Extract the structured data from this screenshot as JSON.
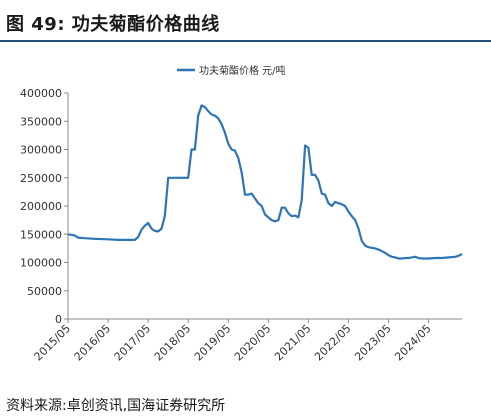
{
  "header": {
    "figure_label": "图 49:",
    "figure_title": "功夫菊酯价格曲线"
  },
  "footer": {
    "source": "资料来源:卓创资讯,国海证券研究所"
  },
  "colors": {
    "line": "#2e75b6",
    "title_rule": "#1f4e79",
    "axis": "#888888"
  },
  "chart_data": {
    "type": "line",
    "title": "",
    "xlabel": "",
    "ylabel": "",
    "ylim": [
      0,
      400000
    ],
    "yticks": [
      "0",
      "50000",
      "100000",
      "150000",
      "200000",
      "250000",
      "300000",
      "350000",
      "400000"
    ],
    "xticks": [
      "2015/05",
      "2016/05",
      "2017/05",
      "2018/05",
      "2019/05",
      "2020/05",
      "2021/05",
      "2022/05",
      "2023/05",
      "2024/05"
    ],
    "xrange": [
      "2015/05",
      "2025/03"
    ],
    "grid": false,
    "legend": "top-center",
    "series": [
      {
        "name": "功夫菊酯价格 元/吨",
        "x": [
          "2015/05",
          "2015/07",
          "2015/08",
          "2015/10",
          "2016/01",
          "2016/05",
          "2016/08",
          "2016/11",
          "2017/01",
          "2017/02",
          "2017/03",
          "2017/04",
          "2017/05",
          "2017/06",
          "2017/07",
          "2017/08",
          "2017/09",
          "2017/10",
          "2017/11",
          "2018/02",
          "2018/05",
          "2018/06",
          "2018/07",
          "2018/08",
          "2018/09",
          "2018/10",
          "2018/11",
          "2018/12",
          "2019/01",
          "2019/02",
          "2019/03",
          "2019/04",
          "2019/05",
          "2019/06",
          "2019/07",
          "2019/08",
          "2019/09",
          "2019/10",
          "2019/11",
          "2019/12",
          "2020/02",
          "2020/03",
          "2020/04",
          "2020/05",
          "2020/06",
          "2020/07",
          "2020/08",
          "2020/09",
          "2020/10",
          "2020/11",
          "2020/12",
          "2021/01",
          "2021/02",
          "2021/03",
          "2021/04",
          "2021/05",
          "2021/06",
          "2021/07",
          "2021/08",
          "2021/09",
          "2021/10",
          "2021/11",
          "2021/12",
          "2022/01",
          "2022/02",
          "2022/03",
          "2022/04",
          "2022/05",
          "2022/06",
          "2022/07",
          "2022/08",
          "2022/09",
          "2022/10",
          "2022/11",
          "2022/12",
          "2023/01",
          "2023/02",
          "2023/03",
          "2023/04",
          "2023/05",
          "2023/06",
          "2023/07",
          "2023/08",
          "2023/09",
          "2023/10",
          "2023/11",
          "2023/12",
          "2024/01",
          "2024/02",
          "2024/03",
          "2024/04",
          "2024/05",
          "2024/07",
          "2024/09",
          "2024/11",
          "2025/01",
          "2025/02",
          "2025/03"
        ],
        "values": [
          150000,
          148000,
          144000,
          143000,
          142000,
          141000,
          140000,
          140000,
          140000,
          145000,
          158000,
          165000,
          170000,
          160000,
          156000,
          155000,
          160000,
          182000,
          250000,
          250000,
          250000,
          300000,
          300000,
          360000,
          378000,
          375000,
          368000,
          362000,
          360000,
          355000,
          345000,
          330000,
          310000,
          300000,
          298000,
          285000,
          260000,
          220000,
          220000,
          222000,
          205000,
          200000,
          185000,
          180000,
          175000,
          173000,
          175000,
          197000,
          197000,
          187000,
          182000,
          183000,
          180000,
          210000,
          307000,
          303000,
          255000,
          255000,
          245000,
          222000,
          220000,
          205000,
          200000,
          207000,
          205000,
          203000,
          200000,
          190000,
          182000,
          175000,
          160000,
          138000,
          130000,
          127000,
          126000,
          125000,
          123000,
          120000,
          117000,
          113000,
          110000,
          109000,
          107000,
          107000,
          108000,
          108000,
          109000,
          110000,
          108000,
          107000,
          107000,
          107000,
          108000,
          108000,
          109000,
          110000,
          112000,
          115000
        ]
      }
    ]
  }
}
